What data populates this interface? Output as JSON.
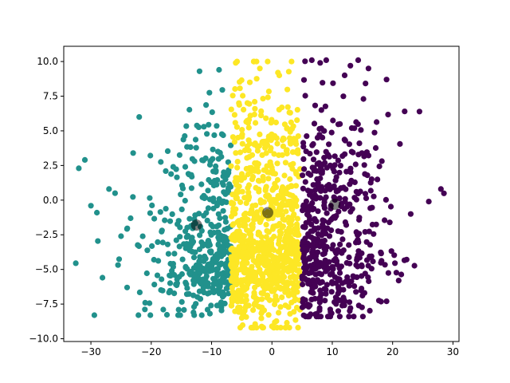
{
  "chart_data": {
    "type": "scatter",
    "title": "",
    "xlabel": "",
    "ylabel": "",
    "xlim": [
      -34.5,
      31
    ],
    "ylim": [
      -10.2,
      11.1
    ],
    "x_ticks": [
      -30,
      -20,
      -10,
      0,
      10,
      20,
      30
    ],
    "x_tick_labels": [
      "−30",
      "−20",
      "−10",
      "0",
      "10",
      "20",
      "30"
    ],
    "y_ticks": [
      -10.0,
      -7.5,
      -5.0,
      -2.5,
      0.0,
      2.5,
      5.0,
      7.5,
      10.0
    ],
    "y_tick_labels": [
      "−10.0",
      "−7.5",
      "−5.0",
      "−2.5",
      "0.0",
      "2.5",
      "5.0",
      "7.5",
      "10.0"
    ],
    "grid": false,
    "legend": "none",
    "clusters": [
      {
        "color": "#21918c",
        "x_range": [
          -32.5,
          -6.5
        ],
        "y_range": [
          -8.3,
          9.4
        ],
        "approx_points": 420,
        "outliers": [
          [
            -32,
            2.3
          ],
          [
            -31,
            2.9
          ],
          [
            -30,
            -0.4
          ],
          [
            -29,
            -0.9
          ],
          [
            -27,
            0.8
          ],
          [
            -26,
            0.5
          ],
          [
            -25,
            -2.6
          ],
          [
            -23,
            3.4
          ],
          [
            -22,
            6.0
          ],
          [
            -24,
            -6.3
          ],
          [
            -21,
            -7.4
          ],
          [
            -18,
            -7.9
          ],
          [
            -12,
            9.3
          ],
          [
            -13,
            -8.1
          ]
        ],
        "centroid": [
          -12.5,
          -1.8
        ]
      },
      {
        "color": "#fde725",
        "x_range": [
          -7,
          5
        ],
        "y_range": [
          -9.2,
          10.0
        ],
        "approx_points": 900,
        "outliers": [
          [
            -6,
            9.9
          ],
          [
            -2,
            9.5
          ],
          [
            1,
            9.2
          ],
          [
            -5,
            -8.5
          ],
          [
            0,
            -9.1
          ],
          [
            3,
            -8.2
          ]
        ],
        "centroid": [
          -0.7,
          -0.9
        ]
      },
      {
        "color": "#440154",
        "x_range": [
          4.5,
          28.5
        ],
        "y_range": [
          -8.4,
          10.1
        ],
        "approx_points": 520,
        "outliers": [
          [
            9,
            10.1
          ],
          [
            8,
            9.9
          ],
          [
            13,
            9.7
          ],
          [
            16,
            9.5
          ],
          [
            19,
            8.7
          ],
          [
            22,
            6.4
          ],
          [
            26,
            -0.1
          ],
          [
            28,
            0.8
          ],
          [
            23,
            -1.0
          ],
          [
            21,
            -5.8
          ],
          [
            19,
            -7.3
          ],
          [
            6,
            -8.4
          ],
          [
            11,
            -8.0
          ]
        ],
        "centroid": [
          10.4,
          -0.3
        ]
      }
    ],
    "centroid_marker": {
      "color": "#000000",
      "opacity": 0.5
    }
  }
}
